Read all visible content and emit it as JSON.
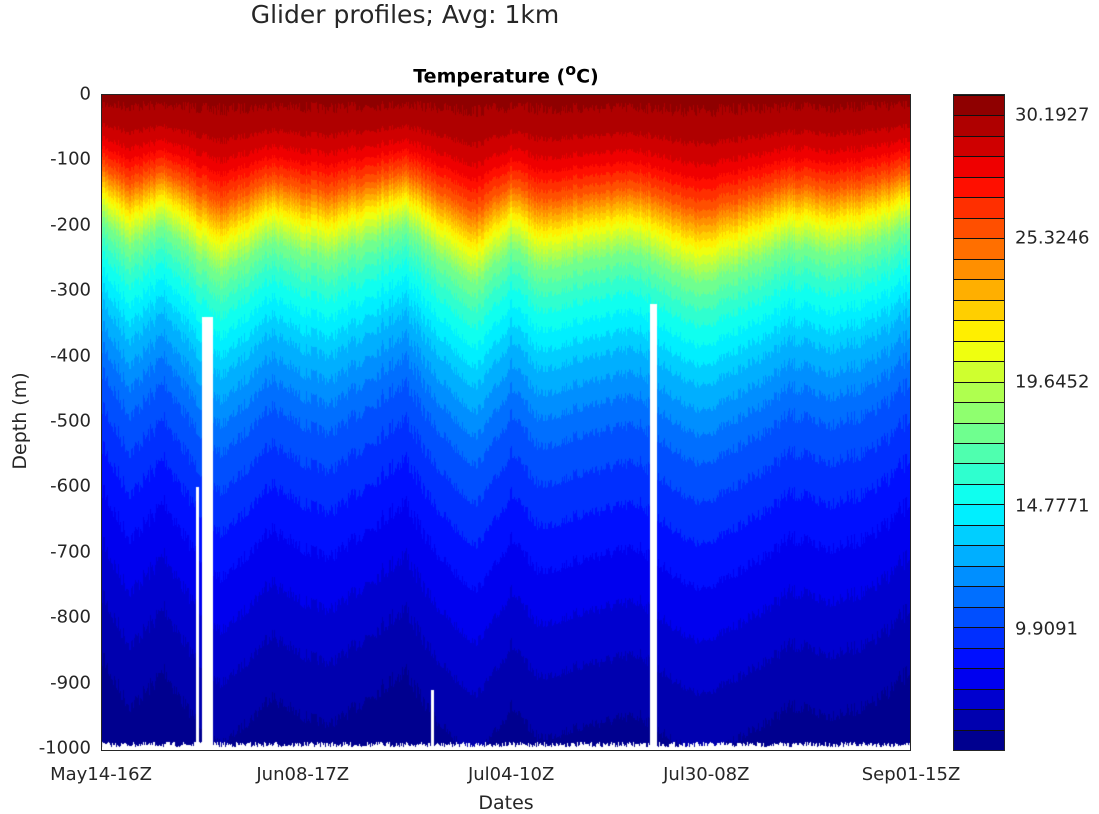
{
  "chart_data": {
    "type": "heatmap",
    "suptitle": "Glider profiles; Avg: 1km",
    "title": "Temperature  (°C)",
    "title_main": "Temperature  (",
    "title_unit": "o",
    "title_end": "C)",
    "xlabel": "Dates",
    "ylabel": "Depth  (m)",
    "ylim": [
      -1000,
      0
    ],
    "yticks": [
      0,
      -100,
      -200,
      -300,
      -400,
      -500,
      -600,
      -700,
      -800,
      -900,
      -1000
    ],
    "xlim_days": [
      0,
      110
    ],
    "xticks": [
      {
        "label": "May14-16Z",
        "day": 0
      },
      {
        "label": "Jun08-17Z",
        "day": 27.4
      },
      {
        "label": "Jul04-10Z",
        "day": 55.7
      },
      {
        "label": "Jul30-08Z",
        "day": 82.2
      },
      {
        "label": "Sep01-15Z",
        "day": 110
      }
    ],
    "colorbar": {
      "min": 5.09,
      "max": 31.02,
      "levels": 32,
      "colormap": "jet",
      "ticks": [
        30.1927,
        25.3246,
        19.6452,
        14.7771,
        9.9091
      ]
    },
    "thermocline_depth_20C": {
      "day": [
        0,
        3.9,
        8.6,
        16.2,
        22.9,
        27,
        31.1,
        36.5,
        41.3,
        46,
        50.8,
        55.6,
        59.6,
        66.4,
        73.2,
        81.3,
        88.1,
        93.5,
        98.9,
        104.3,
        110
      ],
      "depth": [
        140,
        180,
        150,
        230,
        170,
        190,
        200,
        170,
        150,
        200,
        250,
        180,
        220,
        200,
        190,
        250,
        210,
        180,
        190,
        180,
        150
      ]
    },
    "reference_profile": {
      "depth": [
        0,
        50,
        100,
        150,
        200,
        250,
        300,
        400,
        500,
        600,
        700,
        800,
        900,
        1000
      ],
      "temp": [
        30.5,
        29.8,
        28.3,
        25.5,
        21.5,
        18,
        16,
        13.2,
        11,
        9.6,
        8.4,
        7.4,
        6.4,
        5.6
      ]
    },
    "missing_data": [
      {
        "day_start": 12.8,
        "day_end": 13.2,
        "top_depth": 600
      },
      {
        "day_start": 13.6,
        "day_end": 15.1,
        "top_depth": 340
      },
      {
        "day_start": 44.7,
        "day_end": 45.1,
        "top_depth": 910
      },
      {
        "day_start": 74.5,
        "day_end": 75.4,
        "top_depth": 320
      }
    ]
  }
}
